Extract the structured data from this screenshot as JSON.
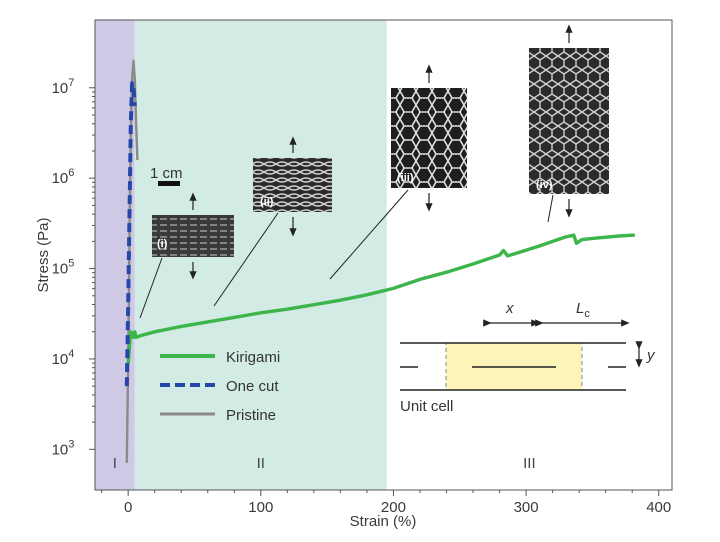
{
  "chart_data": {
    "type": "line",
    "xlabel": "Strain (%)",
    "ylabel": "Stress (Pa)",
    "xlim": [
      -25,
      410
    ],
    "ylim_log10": [
      2.55,
      7.75
    ],
    "x_ticks": [
      0,
      100,
      200,
      300,
      400
    ],
    "y_ticks": [
      {
        "exp": 3,
        "label": "10",
        "sup": "3"
      },
      {
        "exp": 4,
        "label": "10",
        "sup": "4"
      },
      {
        "exp": 5,
        "label": "10",
        "sup": "5"
      },
      {
        "exp": 6,
        "label": "10",
        "sup": "6"
      },
      {
        "exp": 7,
        "label": "10",
        "sup": "7"
      }
    ],
    "regions": [
      {
        "label": "I",
        "x_range": [
          -25,
          5
        ],
        "color": "#d0c9e6"
      },
      {
        "label": "II",
        "x_range": [
          5,
          195
        ],
        "color": "#d2ebe5"
      },
      {
        "label": "III",
        "x_range": [
          195,
          410
        ],
        "color": "#ffffff"
      }
    ],
    "series": [
      {
        "name": "Kirigami",
        "color": "#3cb54a",
        "style": "solid",
        "points": [
          [
            0,
            3.95
          ],
          [
            1,
            4.15
          ],
          [
            2,
            4.3
          ],
          [
            3,
            4.25
          ],
          [
            4,
            4.24
          ],
          [
            5,
            4.3
          ],
          [
            6,
            4.24
          ],
          [
            10,
            4.26
          ],
          [
            20,
            4.3
          ],
          [
            40,
            4.36
          ],
          [
            60,
            4.41
          ],
          [
            80,
            4.46
          ],
          [
            100,
            4.51
          ],
          [
            120,
            4.55
          ],
          [
            140,
            4.6
          ],
          [
            160,
            4.65
          ],
          [
            180,
            4.71
          ],
          [
            200,
            4.78
          ],
          [
            220,
            4.88
          ],
          [
            240,
            4.96
          ],
          [
            260,
            5.05
          ],
          [
            270,
            5.1
          ],
          [
            280,
            5.15
          ],
          [
            283,
            5.2
          ],
          [
            286,
            5.14
          ],
          [
            295,
            5.18
          ],
          [
            310,
            5.25
          ],
          [
            320,
            5.3
          ],
          [
            330,
            5.35
          ],
          [
            336,
            5.37
          ],
          [
            338,
            5.28
          ],
          [
            342,
            5.32
          ],
          [
            355,
            5.34
          ],
          [
            370,
            5.36
          ],
          [
            382,
            5.37
          ]
        ]
      },
      {
        "name": "One cut",
        "color": "#2548a8",
        "style": "dashed",
        "points": [
          [
            -1,
            3.7
          ],
          [
            0,
            4.6
          ],
          [
            1,
            5.6
          ],
          [
            2,
            6.6
          ],
          [
            3,
            7.05
          ],
          [
            4,
            7.0
          ],
          [
            5,
            6.8
          ]
        ]
      },
      {
        "name": "Pristine",
        "color": "#8a8a8a",
        "style": "solid",
        "points": [
          [
            -1,
            2.85
          ],
          [
            0,
            4.0
          ],
          [
            1,
            5.4
          ],
          [
            2,
            6.5
          ],
          [
            3,
            7.1
          ],
          [
            4,
            7.3
          ],
          [
            5,
            7.1
          ],
          [
            6,
            6.6
          ],
          [
            7,
            6.2
          ]
        ]
      }
    ],
    "legend": {
      "placement": "bottom-left",
      "entries": [
        "Kirigami",
        "One cut",
        "Pristine"
      ]
    },
    "annotations": {
      "scale_bar": "1 cm",
      "insets": [
        {
          "label": "(i)",
          "anchor": [
            12,
            4.3
          ]
        },
        {
          "label": "(ii)",
          "anchor": [
            68,
            4.4
          ]
        },
        {
          "label": "(iii)",
          "anchor": [
            158,
            4.75
          ]
        },
        {
          "label": "(iv)",
          "anchor": [
            330,
            5.3
          ]
        }
      ],
      "unit_cell": {
        "label": "Unit cell",
        "x": "x",
        "lc": "L",
        "lc_sub": "c",
        "y": "y"
      }
    },
    "grid": false
  }
}
